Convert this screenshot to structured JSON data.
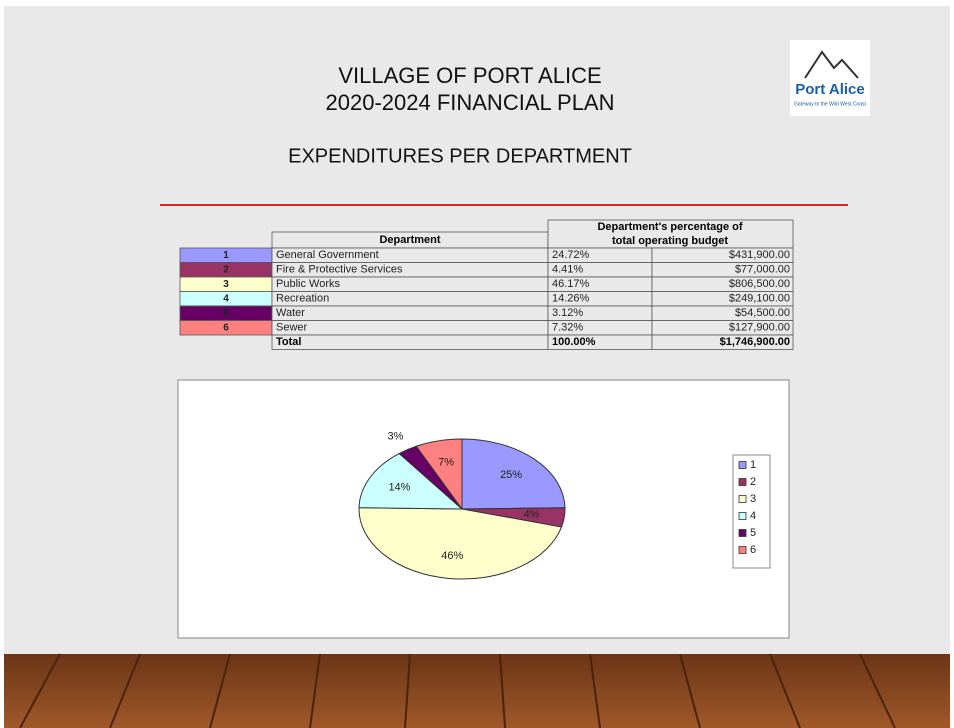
{
  "header": {
    "title_lines": [
      "VILLAGE OF PORT ALICE",
      "2020-2024 FINANCIAL PLAN"
    ],
    "subtitle": "EXPENDITURES PER DEPARTMENT"
  },
  "logo": {
    "name": "Port Alice",
    "tagline": "Gateway to the Wild West Coast"
  },
  "table": {
    "headers": [
      "Department",
      "Department's percentage of",
      "total operating budget"
    ],
    "rows": [
      [
        "1",
        "General Government",
        "24.72%",
        "$431,900.00"
      ],
      [
        "2",
        "Fire & Protective Services",
        "4.41%",
        "$77,000.00"
      ],
      [
        "3",
        "Public Works",
        "46.17%",
        "$806,500.00"
      ],
      [
        "4",
        "Recreation",
        "14.26%",
        "$249,100.00"
      ],
      [
        "5",
        "Water",
        "3.12%",
        "$54,500.00"
      ],
      [
        "6",
        "Sewer",
        "7.32%",
        "$127,900.00"
      ]
    ],
    "total": [
      "Total",
      "100.00%",
      "$1,746,900.00"
    ]
  },
  "chart_data": {
    "type": "pie",
    "categories": [
      "1",
      "2",
      "3",
      "4",
      "5",
      "6"
    ],
    "values": [
      24.72,
      4.41,
      46.17,
      14.26,
      3.12,
      7.32
    ],
    "value_labels": [
      "25%",
      "4%",
      "46%",
      "14%",
      "3%",
      "7%"
    ],
    "colors": [
      "#9999ff",
      "#993366",
      "#ffffcc",
      "#ccffff",
      "#660066",
      "#ff8080"
    ]
  }
}
